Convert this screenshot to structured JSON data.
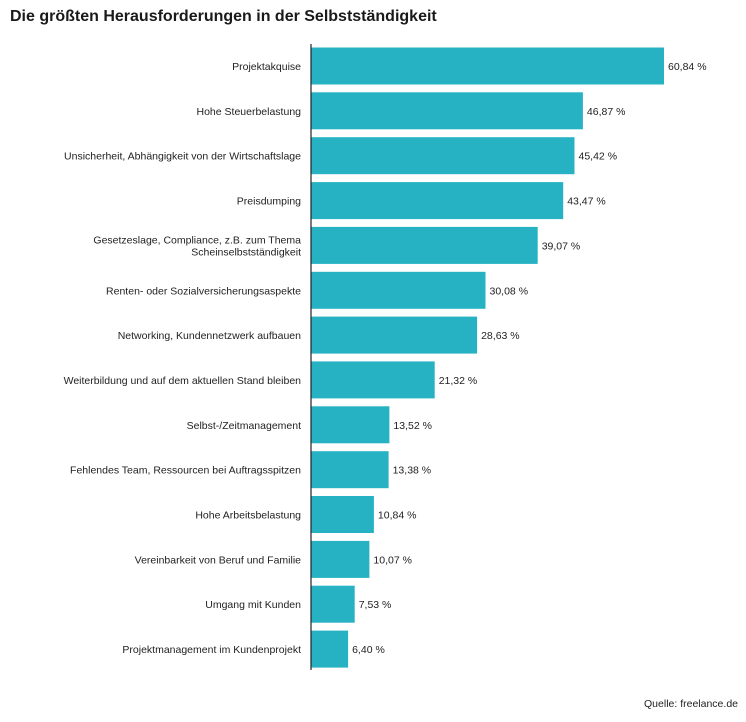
{
  "title": "Die größten Herausforderungen in der Selbstständigkeit",
  "source": "Quelle: freelance.de",
  "colors": {
    "bar": "#27b2c4",
    "axis": "#222222"
  },
  "chart_data": {
    "type": "bar",
    "orientation": "horizontal",
    "title": "Die größten Herausforderungen in der Selbstständigkeit",
    "xlabel": "",
    "ylabel": "",
    "unit": "%",
    "xlim": [
      0,
      60.84
    ],
    "grid": false,
    "categories": [
      [
        "Projektakquise"
      ],
      [
        "Hohe Steuerbelastung"
      ],
      [
        "Unsicherheit, Abhängigkeit von der Wirtschaftslage"
      ],
      [
        "Preisdumping"
      ],
      [
        "Gesetzeslage, Compliance, z.B. zum Thema",
        "Scheinselbstständigkeit"
      ],
      [
        "Renten- oder Sozialversicherungsaspekte"
      ],
      [
        "Networking, Kundennetzwerk aufbauen"
      ],
      [
        "Weiterbildung und auf dem aktuellen Stand bleiben"
      ],
      [
        "Selbst-/Zeitmanagement"
      ],
      [
        "Fehlendes Team, Ressourcen bei Auftragsspitzen"
      ],
      [
        "Hohe Arbeitsbelastung"
      ],
      [
        "Vereinbarkeit von Beruf und Familie"
      ],
      [
        "Umgang mit Kunden"
      ],
      [
        "Projektmanagement im Kundenprojekt"
      ]
    ],
    "values": [
      60.84,
      46.87,
      45.42,
      43.47,
      39.07,
      30.08,
      28.63,
      21.32,
      13.52,
      13.38,
      10.84,
      10.07,
      7.53,
      6.4
    ],
    "value_labels": [
      "60,84 %",
      "46,87 %",
      "45,42 %",
      "43,47 %",
      "39,07 %",
      "30,08 %",
      "28,63 %",
      "21,32 %",
      "13,52 %",
      "13,38 %",
      "10,84 %",
      "10,07 %",
      "7,53 %",
      "6,40 %"
    ]
  }
}
